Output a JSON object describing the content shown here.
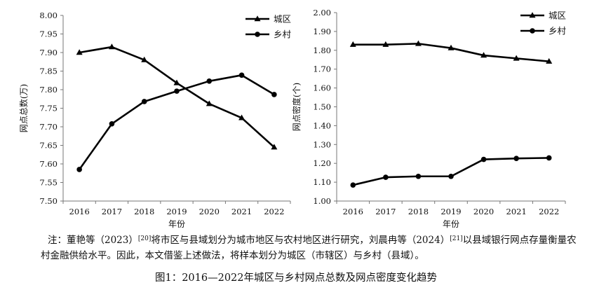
{
  "chart_data": [
    {
      "type": "line",
      "categories": [
        "2016",
        "2017",
        "2018",
        "2019",
        "2020",
        "2021",
        "2022"
      ],
      "series": [
        {
          "name": "城区",
          "marker": "triangle",
          "values": [
            7.9,
            7.915,
            7.88,
            7.818,
            7.762,
            7.724,
            7.645
          ]
        },
        {
          "name": "乡村",
          "marker": "circle",
          "values": [
            7.585,
            7.708,
            7.768,
            7.796,
            7.823,
            7.839,
            7.787
          ]
        }
      ],
      "xlabel": "年份",
      "ylabel": "网点总数(万)",
      "ylim": [
        7.5,
        8.0
      ],
      "yticks": [
        "7.50",
        "7.55",
        "7.60",
        "7.65",
        "7.70",
        "7.75",
        "7.80",
        "7.85",
        "7.90",
        "7.95",
        "8.00"
      ],
      "grid": false,
      "legend": "top-right"
    },
    {
      "type": "line",
      "categories": [
        "2016",
        "2017",
        "2018",
        "2019",
        "2020",
        "2021",
        "2022"
      ],
      "series": [
        {
          "name": "城区",
          "marker": "triangle",
          "values": [
            1.83,
            1.83,
            1.835,
            1.812,
            1.773,
            1.757,
            1.741
          ]
        },
        {
          "name": "乡村",
          "marker": "circle",
          "values": [
            1.085,
            1.126,
            1.131,
            1.131,
            1.221,
            1.226,
            1.229
          ]
        }
      ],
      "xlabel": "年份",
      "ylabel": "网点密度(个)",
      "ylim": [
        1.0,
        2.0
      ],
      "yticks": [
        "1.00",
        "1.10",
        "1.20",
        "1.30",
        "1.40",
        "1.50",
        "1.60",
        "1.70",
        "1.80",
        "1.90",
        "2.00"
      ],
      "grid": false,
      "legend": "top-right"
    }
  ],
  "note": {
    "lead": "注：董艳等（2023）",
    "ref1": "[20]",
    "mid": "将市区与县域划分为城市地区与农村地区进行研究，刘晨冉等（2024）",
    "ref2": "[21]",
    "tail": "以县域银行网点存量衡量农村金融供给水平。因此，本文借鉴上述做法，将样本划分为城区（市辖区）与乡村（县域）。"
  },
  "caption": "图1：2016—2022年城区与乡村网点总数及网点密度变化趋势"
}
